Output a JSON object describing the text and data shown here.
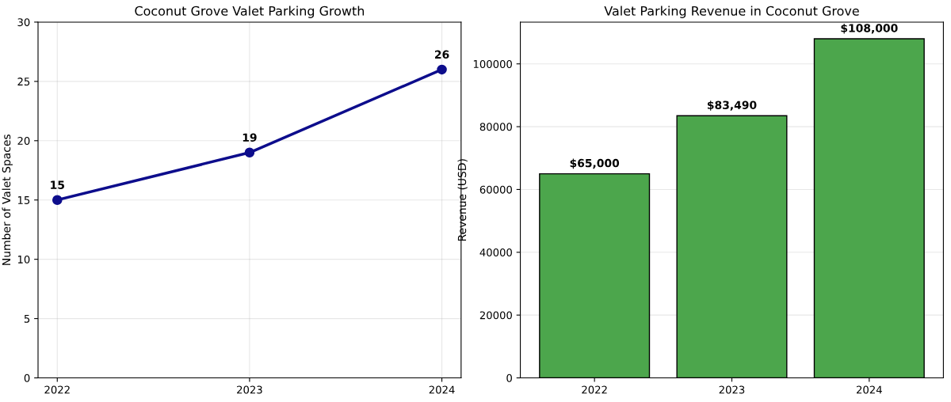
{
  "chart_data": [
    {
      "type": "line",
      "title": "Coconut Grove Valet Parking Growth",
      "ylabel": "Number of Valet Spaces",
      "x": [
        2022,
        2023,
        2024
      ],
      "series": [
        {
          "color": "#0d0d8c",
          "values": [
            15,
            19,
            26
          ]
        }
      ],
      "xlim": [
        2021.9,
        2024.1
      ],
      "xticks": [
        2022,
        2023,
        2024
      ],
      "ylim": [
        0,
        30
      ],
      "yticks": [
        0,
        5,
        10,
        15,
        20,
        25,
        30
      ],
      "grid": true,
      "marker": "circle",
      "line_style": "solid",
      "data_labels": true
    },
    {
      "type": "bar",
      "title": "Valet Parking Revenue in Coconut Grove",
      "ylabel": "Revenue (USD)",
      "categories": [
        "2022",
        "2023",
        "2024"
      ],
      "series": [
        {
          "color": "#4ca64c",
          "values": [
            65000,
            83490,
            108000
          ]
        }
      ],
      "value_labels": [
        "$65,000",
        "$83,490",
        "$108,000"
      ],
      "ylim": [
        0,
        113300
      ],
      "yticks": [
        0,
        20000,
        40000,
        60000,
        80000,
        100000
      ],
      "grid": "y"
    }
  ]
}
